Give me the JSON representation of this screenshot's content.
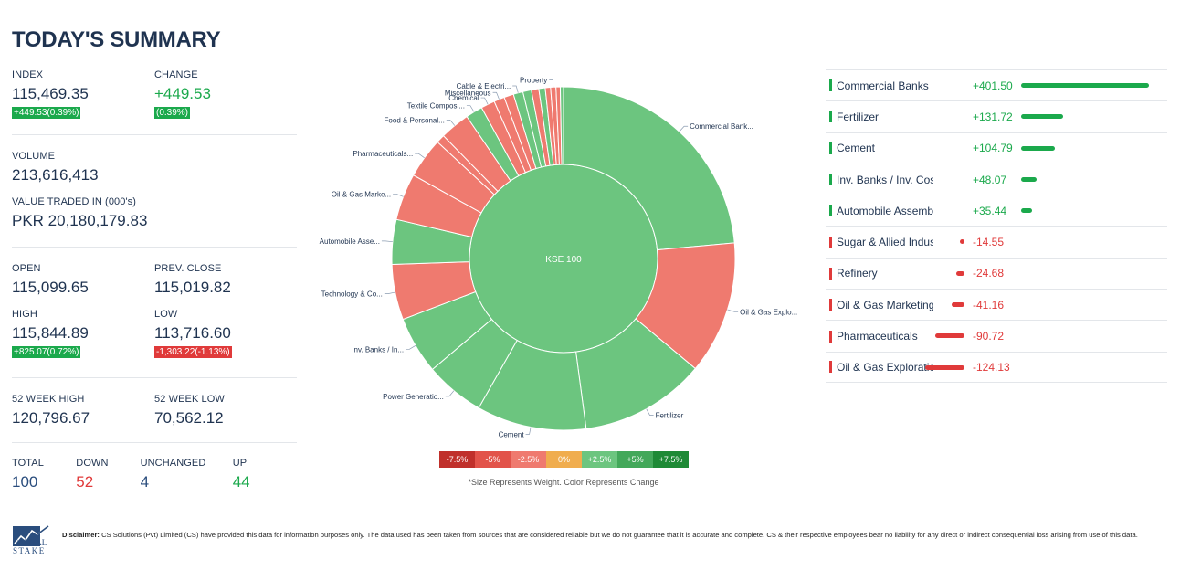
{
  "title": "TODAY'S SUMMARY",
  "index": {
    "label": "INDEX",
    "value": "115,469.35",
    "badge": "+449.53(0.39%)"
  },
  "change": {
    "label": "CHANGE",
    "value": "+449.53",
    "badge": "(0.39%)"
  },
  "volume": {
    "label": "VOLUME",
    "value": "213,616,413"
  },
  "value_traded": {
    "label": "VALUE TRADED IN (000's)",
    "value": "PKR 20,180,179.83"
  },
  "open": {
    "label": "OPEN",
    "value": "115,099.65"
  },
  "prev_close": {
    "label": "PREV. CLOSE",
    "value": "115,019.82"
  },
  "high": {
    "label": "HIGH",
    "value": "115,844.89",
    "badge": "+825.07(0.72%)"
  },
  "low": {
    "label": "LOW",
    "value": "113,716.60",
    "badge": "-1,303.22(-1.13%)"
  },
  "week52_high": {
    "label": "52 WEEK HIGH",
    "value": "120,796.67"
  },
  "week52_low": {
    "label": "52 WEEK LOW",
    "value": "70,562.12"
  },
  "breadth": {
    "total": {
      "label": "TOTAL",
      "value": "100"
    },
    "down": {
      "label": "DOWN",
      "value": "52"
    },
    "unchanged": {
      "label": "UNCHANGED",
      "value": "4"
    },
    "up": {
      "label": "UP",
      "value": "44"
    }
  },
  "chart_data": {
    "type": "sunburst",
    "center_label": "KSE 100",
    "sectors": [
      {
        "label": "Commercial Bank...",
        "weight": 23.5,
        "color": "#6cc57f"
      },
      {
        "label": "Oil & Gas Explo...",
        "weight": 12.5,
        "color": "#ef7a6f"
      },
      {
        "label": "Fertilizer",
        "weight": 11.8,
        "color": "#6cc57f"
      },
      {
        "label": "Cement",
        "weight": 10.3,
        "color": "#6cc57f"
      },
      {
        "label": "Power Generatio...",
        "weight": 5.6,
        "color": "#6cc57f"
      },
      {
        "label": "Inv. Banks / In...",
        "weight": 5.4,
        "color": "#6cc57f"
      },
      {
        "label": "Technology & Co...",
        "weight": 5.2,
        "color": "#ef7a6f"
      },
      {
        "label": "Automobile Asse...",
        "weight": 4.2,
        "color": "#6cc57f"
      },
      {
        "label": "Oil & Gas Marke...",
        "weight": 4.4,
        "color": "#ef7a6f"
      },
      {
        "label": "Pharmaceuticals...",
        "weight": 3.8,
        "color": "#ef7a6f"
      },
      {
        "label": "",
        "weight": 0.8,
        "color": "#ef7a6f"
      },
      {
        "label": "Food & Personal...",
        "weight": 2.8,
        "color": "#ef7a6f"
      },
      {
        "label": "Textile Composi...",
        "weight": 1.6,
        "color": "#6cc57f"
      },
      {
        "label": "Chemical",
        "weight": 1.3,
        "color": "#ef7a6f"
      },
      {
        "label": "Miscellaneous",
        "weight": 1.0,
        "color": "#ef7a6f"
      },
      {
        "label": "",
        "weight": 0.9,
        "color": "#ef7a6f"
      },
      {
        "label": "Cable & Electri...",
        "weight": 0.9,
        "color": "#6cc57f"
      },
      {
        "label": "",
        "weight": 0.8,
        "color": "#6cc57f"
      },
      {
        "label": "",
        "weight": 0.7,
        "color": "#ef7a6f"
      },
      {
        "label": "",
        "weight": 0.6,
        "color": "#6cc57f"
      },
      {
        "label": "",
        "weight": 0.5,
        "color": "#ef7a6f"
      },
      {
        "label": "Property",
        "weight": 0.5,
        "color": "#ef7a6f"
      },
      {
        "label": "",
        "weight": 0.4,
        "color": "#ef7a6f"
      },
      {
        "label": "",
        "weight": 0.3,
        "color": "#6cc57f"
      }
    ],
    "legend": [
      {
        "label": "-7.5%",
        "color": "#c0302b"
      },
      {
        "label": "-5%",
        "color": "#e2534a"
      },
      {
        "label": "-2.5%",
        "color": "#ef7a6f"
      },
      {
        "label": "0%",
        "color": "#f0ad4e"
      },
      {
        "label": "+2.5%",
        "color": "#6cc57f"
      },
      {
        "label": "+5%",
        "color": "#43a85a"
      },
      {
        "label": "+7.5%",
        "color": "#1e8a36"
      }
    ],
    "note": "*Size Represents Weight. Color Represents Change"
  },
  "sector_points": [
    {
      "name": "Commercial Banks",
      "value": "+401.50",
      "points": 401.5,
      "color": "#1ba94c"
    },
    {
      "name": "Fertilizer",
      "value": "+131.72",
      "points": 131.72,
      "color": "#1ba94c"
    },
    {
      "name": "Cement",
      "value": "+104.79",
      "points": 104.79,
      "color": "#1ba94c"
    },
    {
      "name": "Inv. Banks / Inv. Cos.",
      "value": "+48.07",
      "points": 48.07,
      "color": "#1ba94c"
    },
    {
      "name": "Automobile Assembler",
      "value": "+35.44",
      "points": 35.44,
      "color": "#1ba94c"
    },
    {
      "name": "Sugar & Allied Industries",
      "value": "-14.55",
      "points": -14.55,
      "color": "#e03a3a"
    },
    {
      "name": "Refinery",
      "value": "-24.68",
      "points": -24.68,
      "color": "#e03a3a"
    },
    {
      "name": "Oil & Gas Marketing",
      "value": "-41.16",
      "points": -41.16,
      "color": "#e03a3a"
    },
    {
      "name": "Pharmaceuticals",
      "value": "-90.72",
      "points": -90.72,
      "color": "#e03a3a"
    },
    {
      "name": "Oil & Gas Exploration",
      "value": "-124.13",
      "points": -124.13,
      "color": "#e03a3a"
    }
  ],
  "footer": {
    "logo_line1": "CAPITAL",
    "logo_line2": "STAKE",
    "disclaimer_label": "Disclaimer:",
    "disclaimer_text": " CS Solutions (Pvt) Limited (CS) have provided this data for information purposes only. The data used has been taken from sources that are considered reliable but we do not guarantee that it is accurate and complete. CS & their respective employees bear no liability for any direct or indirect consequential loss arising from use of this data."
  }
}
